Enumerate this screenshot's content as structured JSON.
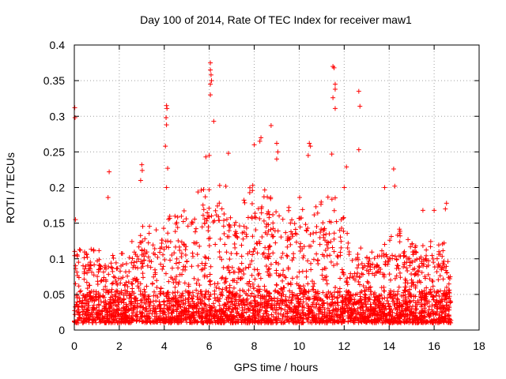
{
  "chart_data": {
    "type": "scatter",
    "title": "Day 100 of 2014, Rate Of TEC Index for receiver maw1",
    "xlabel": "GPS time / hours",
    "ylabel": "ROTI / TECUs",
    "xlim": [
      0,
      18
    ],
    "ylim": [
      0,
      0.4
    ],
    "xticks": [
      0,
      2,
      4,
      6,
      8,
      10,
      12,
      14,
      16,
      18
    ],
    "xtick_labels": [
      "0",
      "2",
      "4",
      "6",
      "8",
      "10",
      "12",
      "14",
      "16",
      "18"
    ],
    "yticks": [
      0,
      0.05,
      0.1,
      0.15,
      0.2,
      0.25,
      0.3,
      0.35,
      0.4
    ],
    "ytick_labels": [
      "0",
      "0.05",
      "0.1",
      "0.15",
      "0.2",
      "0.25",
      "0.3",
      "0.35",
      "0.4"
    ],
    "grid": true,
    "marker": "plus",
    "color": "#ff0000",
    "x_range_data": [
      0,
      16.75
    ],
    "envelope": {
      "x": [
        0,
        0.5,
        1,
        1.5,
        2,
        2.5,
        3,
        3.5,
        4,
        4.5,
        5,
        5.5,
        6,
        6.5,
        7,
        7.5,
        8,
        8.5,
        9,
        9.5,
        10,
        10.5,
        11,
        11.5,
        12,
        12.5,
        13,
        13.5,
        14,
        14.5,
        15,
        15.5,
        16,
        16.5,
        16.75
      ],
      "upper": [
        0.12,
        0.1,
        0.11,
        0.1,
        0.11,
        0.12,
        0.14,
        0.13,
        0.15,
        0.15,
        0.16,
        0.18,
        0.2,
        0.19,
        0.18,
        0.17,
        0.19,
        0.18,
        0.17,
        0.16,
        0.17,
        0.16,
        0.17,
        0.18,
        0.16,
        0.12,
        0.11,
        0.1,
        0.12,
        0.13,
        0.11,
        0.12,
        0.12,
        0.11,
        0.07
      ]
    },
    "highlights": [
      {
        "x": 0.02,
        "y": 0.312
      },
      {
        "x": 0.03,
        "y": 0.298
      },
      {
        "x": 0.05,
        "y": 0.155
      },
      {
        "x": 1.55,
        "y": 0.222
      },
      {
        "x": 1.5,
        "y": 0.186
      },
      {
        "x": 3.0,
        "y": 0.232
      },
      {
        "x": 3.02,
        "y": 0.224
      },
      {
        "x": 2.95,
        "y": 0.21
      },
      {
        "x": 4.1,
        "y": 0.315
      },
      {
        "x": 4.12,
        "y": 0.311
      },
      {
        "x": 4.08,
        "y": 0.298
      },
      {
        "x": 4.1,
        "y": 0.288
      },
      {
        "x": 4.05,
        "y": 0.258
      },
      {
        "x": 4.15,
        "y": 0.227
      },
      {
        "x": 4.1,
        "y": 0.2
      },
      {
        "x": 6.05,
        "y": 0.375
      },
      {
        "x": 6.05,
        "y": 0.365
      },
      {
        "x": 6.08,
        "y": 0.358
      },
      {
        "x": 6.1,
        "y": 0.35
      },
      {
        "x": 6.05,
        "y": 0.345
      },
      {
        "x": 6.05,
        "y": 0.33
      },
      {
        "x": 6.2,
        "y": 0.293
      },
      {
        "x": 6.0,
        "y": 0.245
      },
      {
        "x": 5.85,
        "y": 0.243
      },
      {
        "x": 6.85,
        "y": 0.248
      },
      {
        "x": 8.0,
        "y": 0.26
      },
      {
        "x": 8.25,
        "y": 0.265
      },
      {
        "x": 8.3,
        "y": 0.27
      },
      {
        "x": 8.75,
        "y": 0.287
      },
      {
        "x": 9.0,
        "y": 0.262
      },
      {
        "x": 9.05,
        "y": 0.25
      },
      {
        "x": 9.0,
        "y": 0.24
      },
      {
        "x": 10.45,
        "y": 0.262
      },
      {
        "x": 10.5,
        "y": 0.258
      },
      {
        "x": 10.4,
        "y": 0.245
      },
      {
        "x": 11.5,
        "y": 0.37
      },
      {
        "x": 11.55,
        "y": 0.368
      },
      {
        "x": 11.6,
        "y": 0.345
      },
      {
        "x": 11.6,
        "y": 0.338
      },
      {
        "x": 11.5,
        "y": 0.326
      },
      {
        "x": 11.6,
        "y": 0.311
      },
      {
        "x": 11.45,
        "y": 0.247
      },
      {
        "x": 12.65,
        "y": 0.335
      },
      {
        "x": 12.7,
        "y": 0.314
      },
      {
        "x": 12.65,
        "y": 0.253
      },
      {
        "x": 12.1,
        "y": 0.229
      },
      {
        "x": 12.0,
        "y": 0.2
      },
      {
        "x": 14.2,
        "y": 0.226
      },
      {
        "x": 14.25,
        "y": 0.202
      },
      {
        "x": 13.8,
        "y": 0.2
      },
      {
        "x": 16.55,
        "y": 0.178
      },
      {
        "x": 16.5,
        "y": 0.17
      },
      {
        "x": 15.5,
        "y": 0.168
      },
      {
        "x": 16.0,
        "y": 0.168
      }
    ]
  }
}
